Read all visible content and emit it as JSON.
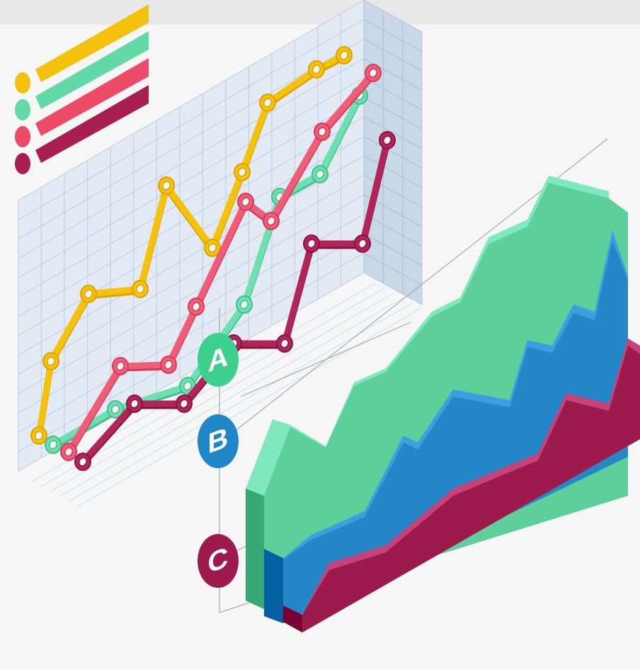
{
  "labels": [
    "A",
    "B",
    "C"
  ]
}
